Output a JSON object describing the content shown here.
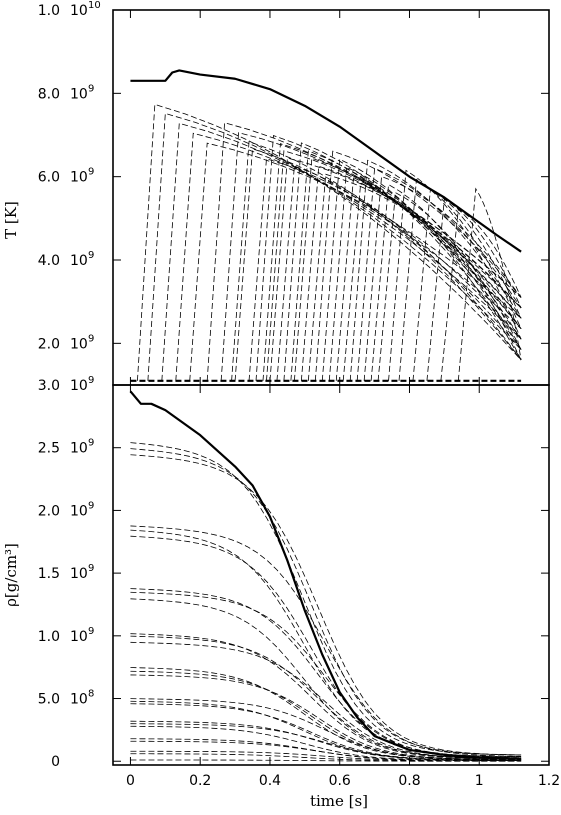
{
  "chart_data": [
    {
      "type": "line",
      "panel": "top",
      "ylabel": "T [K]",
      "xlim": [
        -0.05,
        1.2
      ],
      "ylim": [
        1000000000.0,
        10000000000.0
      ],
      "y_ticks": [
        {
          "value": 10000000000.0,
          "mantissa": "1.0",
          "exp": "10"
        },
        {
          "value": 8000000000.0,
          "mantissa": "8.0",
          "exp": "9"
        },
        {
          "value": 6000000000.0,
          "mantissa": "6.0",
          "exp": "9"
        },
        {
          "value": 4000000000.0,
          "mantissa": "4.0",
          "exp": "9"
        },
        {
          "value": 2000000000.0,
          "mantissa": "2.0",
          "exp": "9"
        }
      ],
      "series": [
        {
          "style": "solid",
          "x": [
            0.0,
            0.05,
            0.1,
            0.12,
            0.14,
            0.2,
            0.3,
            0.4,
            0.5,
            0.6,
            0.7,
            0.8,
            0.9,
            1.0,
            1.05,
            1.12
          ],
          "y": [
            8300000000.0,
            8300000000.0,
            8300000000.0,
            8500000000.0,
            8550000000.0,
            8450000000.0,
            8350000000.0,
            8100000000.0,
            7700000000.0,
            7200000000.0,
            6600000000.0,
            6000000000.0,
            5500000000.0,
            4900000000.0,
            4600000000.0,
            4200000000.0
          ]
        },
        {
          "style": "thick-dashed",
          "x": [
            0.0,
            1.12
          ],
          "y": [
            1100000000.0,
            1100000000.0
          ]
        }
      ],
      "tracer_ignition_times": [
        0.03,
        0.06,
        0.1,
        0.14,
        0.18,
        0.23,
        0.27,
        0.3,
        0.31,
        0.35,
        0.37,
        0.39,
        0.4,
        0.41,
        0.43,
        0.45,
        0.47,
        0.48,
        0.5,
        0.52,
        0.54,
        0.56,
        0.58,
        0.6,
        0.62,
        0.64,
        0.66,
        0.68,
        0.7,
        0.72,
        0.75,
        0.78,
        0.82,
        0.86,
        0.9,
        0.95
      ]
    },
    {
      "type": "line",
      "panel": "bottom",
      "xlabel": "time [s]",
      "ylabel": "ρ[g/cm³]",
      "xlim": [
        -0.05,
        1.2
      ],
      "ylim": [
        -30000000.0,
        3000000000.0
      ],
      "x_ticks": [
        "0",
        "0.2",
        "0.4",
        "0.6",
        "0.8",
        "1",
        "1.2"
      ],
      "x_tick_values": [
        0,
        0.2,
        0.4,
        0.6,
        0.8,
        1.0,
        1.2
      ],
      "y_ticks": [
        {
          "value": 3000000000.0,
          "mantissa": "3.0",
          "exp": "9"
        },
        {
          "value": 2500000000.0,
          "mantissa": "2.5",
          "exp": "9"
        },
        {
          "value": 2000000000.0,
          "mantissa": "2.0",
          "exp": "9"
        },
        {
          "value": 1500000000.0,
          "mantissa": "1.5",
          "exp": "9"
        },
        {
          "value": 1000000000.0,
          "mantissa": "1.0",
          "exp": "9"
        },
        {
          "value": 500000000.0,
          "mantissa": "5.0",
          "exp": "8"
        },
        {
          "value": 0,
          "mantissa": "0",
          "exp": ""
        }
      ],
      "series": [
        {
          "style": "solid",
          "x": [
            0.0,
            0.03,
            0.06,
            0.1,
            0.2,
            0.3,
            0.35,
            0.4,
            0.45,
            0.5,
            0.55,
            0.6,
            0.65,
            0.7,
            0.8,
            0.9,
            1.0,
            1.12
          ],
          "y": [
            2950000000.0,
            2850000000.0,
            2850000000.0,
            2800000000.0,
            2600000000.0,
            2350000000.0,
            2200000000.0,
            1950000000.0,
            1600000000.0,
            1200000000.0,
            850000000.0,
            550000000.0,
            350000000.0,
            200000000.0,
            90000000.0,
            50000000.0,
            30000000.0,
            20000000.0
          ]
        }
      ],
      "tracer_initial_densities": [
        2550000000.0,
        2500000000.0,
        2450000000.0,
        1880000000.0,
        1850000000.0,
        1800000000.0,
        1380000000.0,
        1350000000.0,
        1300000000.0,
        1020000000.0,
        1000000000.0,
        950000000.0,
        750000000.0,
        720000000.0,
        690000000.0,
        500000000.0,
        480000000.0,
        460000000.0,
        320000000.0,
        300000000.0,
        280000000.0,
        180000000.0,
        160000000.0,
        80000000.0,
        60000000.0,
        10000000.0
      ]
    }
  ]
}
